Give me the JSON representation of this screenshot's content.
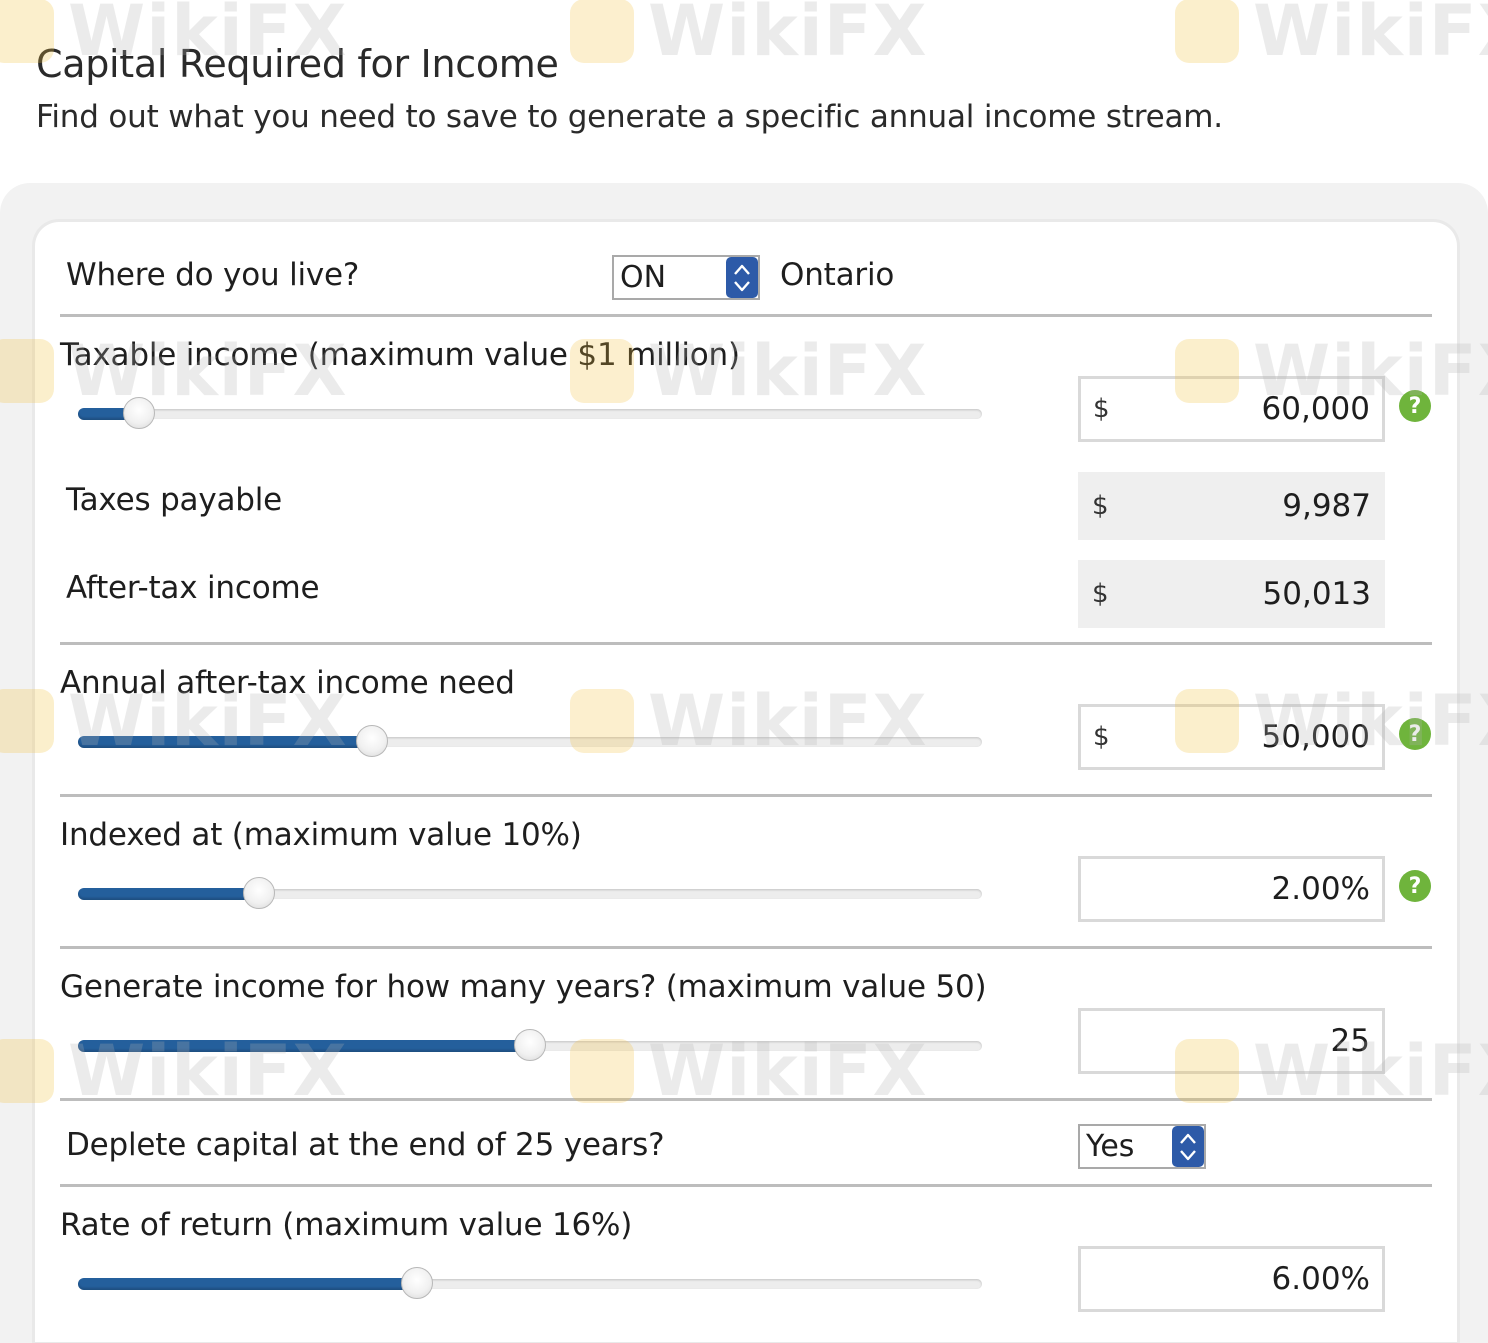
{
  "header": {
    "title": "Capital Required for Income",
    "subtitle": "Find out what you need to save to generate a specific annual income stream."
  },
  "province": {
    "label": "Where do you live?",
    "selected": "ON",
    "name": "Ontario"
  },
  "taxable_income": {
    "label": "Taxable income (maximum value $1 million)",
    "currency": "$",
    "value": "60,000",
    "slider_fraction": 0.067
  },
  "taxes_payable": {
    "label": "Taxes payable",
    "currency": "$",
    "value": "9,987"
  },
  "after_tax_income": {
    "label": "After-tax income",
    "currency": "$",
    "value": "50,013"
  },
  "income_need": {
    "label": "Annual after-tax income need",
    "currency": "$",
    "value": "50,000",
    "slider_fraction": 0.325
  },
  "indexed": {
    "label": "Indexed at (maximum value 10%)",
    "value": "2.00%",
    "slider_fraction": 0.2
  },
  "years": {
    "label": "Generate income for how many years? (maximum value 50)",
    "value": "25",
    "slider_fraction": 0.5
  },
  "deplete": {
    "label": "Deplete capital at the end of 25 years?",
    "selected": "Yes"
  },
  "rate_of_return": {
    "label": "Rate of return (maximum value 16%)",
    "value": "6.00%",
    "slider_fraction": 0.375
  },
  "help": {
    "glyph": "?"
  },
  "watermark": {
    "text": "WikiFX"
  },
  "colors": {
    "slider_fill": "#245f9c",
    "select_arrow": "#2d5aa8",
    "help_icon": "#6fb43c",
    "watermark_logo": "#f3c13a"
  }
}
